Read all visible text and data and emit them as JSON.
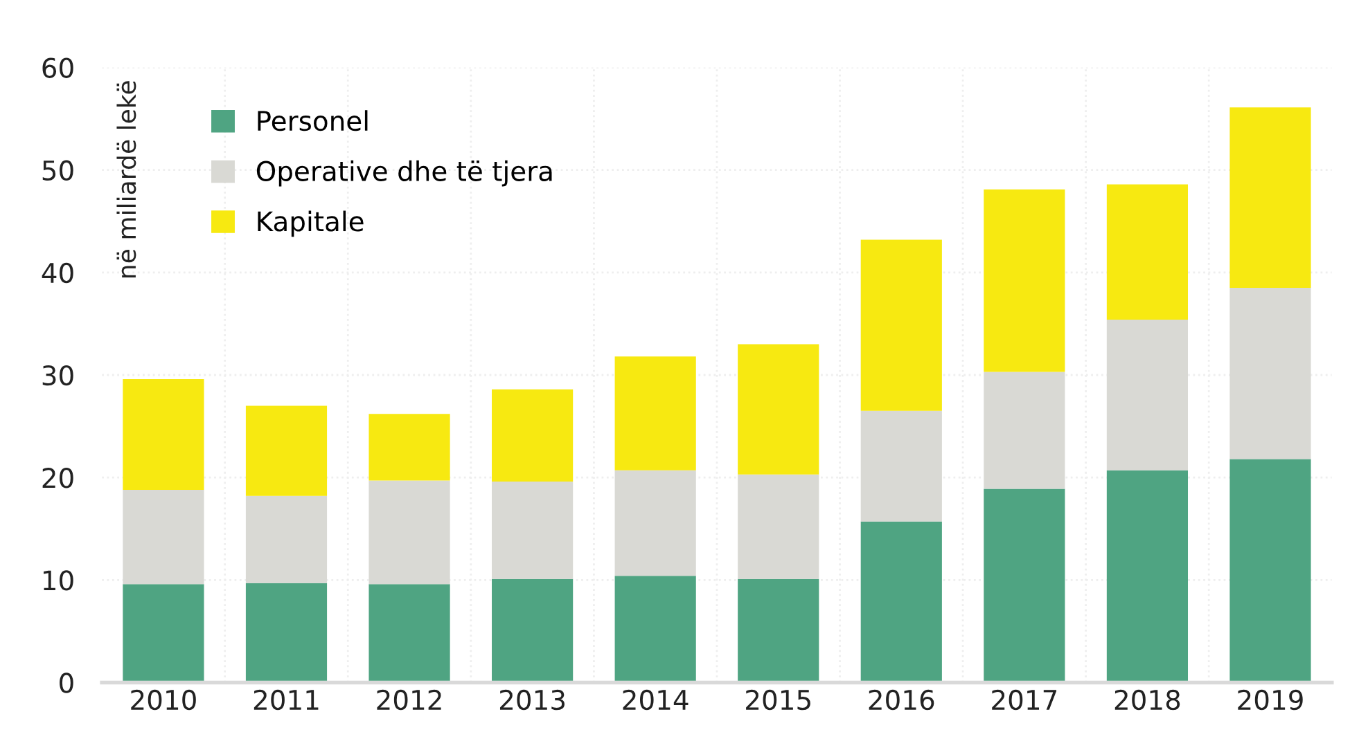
{
  "chart_data": {
    "type": "bar",
    "stacked": true,
    "ylabel": "në miliardë lekë",
    "categories": [
      "2010",
      "2011",
      "2012",
      "2013",
      "2014",
      "2015",
      "2016",
      "2017",
      "2018",
      "2019"
    ],
    "series": [
      {
        "name": "Personel",
        "color": "#4fa482",
        "values": [
          9.6,
          9.7,
          9.6,
          10.1,
          10.4,
          10.1,
          15.7,
          18.9,
          20.7,
          21.8
        ]
      },
      {
        "name": "Operative dhe të tjera",
        "color": "#d9d9d4",
        "values": [
          9.2,
          8.5,
          10.1,
          9.5,
          10.3,
          10.2,
          10.8,
          11.4,
          14.7,
          16.7
        ]
      },
      {
        "name": "Kapitale",
        "color": "#f7e911",
        "values": [
          10.8,
          8.8,
          6.5,
          9.0,
          11.1,
          12.7,
          16.7,
          17.8,
          13.2,
          17.6
        ]
      }
    ],
    "ylim": [
      0,
      60
    ],
    "yticks": [
      0,
      10,
      20,
      30,
      40,
      50,
      60
    ],
    "grid": true,
    "legend": "top left"
  }
}
